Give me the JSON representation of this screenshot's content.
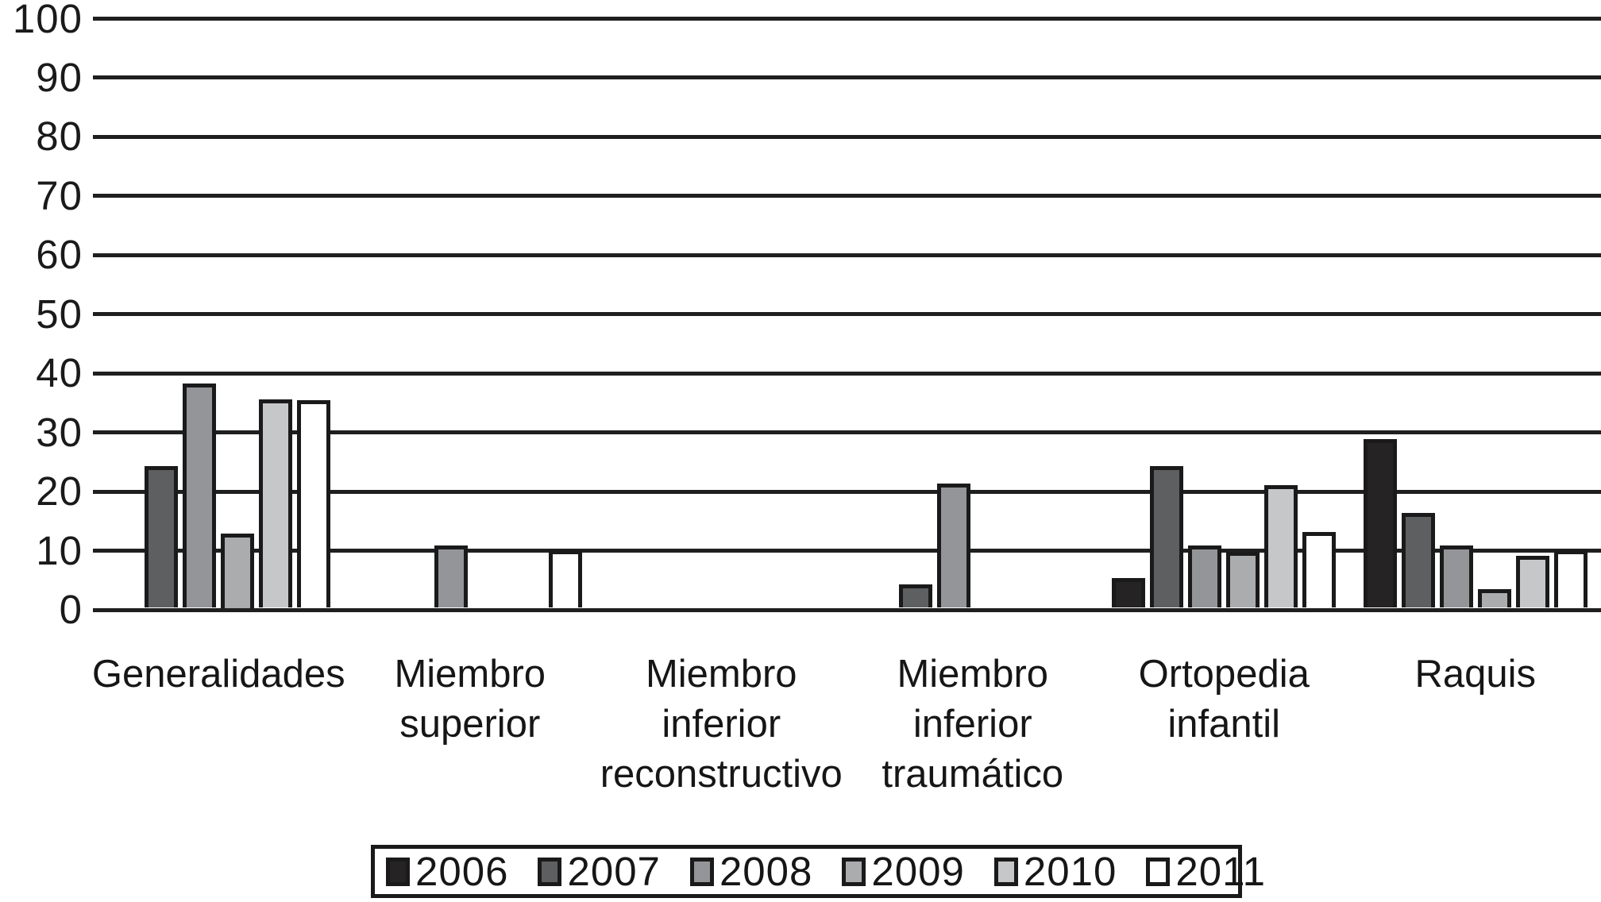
{
  "figure": {
    "kind": "grouped bar chart, grayscale, no title",
    "background_color": "#ffffff",
    "gridline_color": "#1f1f1f",
    "bar_border_color": "#1a1a1a",
    "text_color": "#161616"
  },
  "chart_data": {
    "type": "bar",
    "title": "",
    "xlabel": "",
    "ylabel": "",
    "categories": [
      "Generalidades",
      "Miembro superior",
      "Miembro inferior reconstructivo",
      "Miembro inferior traumático",
      "Ortopedia infantil",
      "Raquis"
    ],
    "category_label_lines": [
      [
        "Generalidades"
      ],
      [
        "Miembro",
        "superior"
      ],
      [
        "Miembro",
        "inferior",
        "reconstructivo"
      ],
      [
        "Miembro",
        "inferior",
        "traumático"
      ],
      [
        "Ortopedia",
        "infantil"
      ],
      [
        "Raquis"
      ]
    ],
    "series": [
      {
        "name": "2006",
        "color": "#262324",
        "values": [
          0,
          0,
          0,
          0,
          5,
          28.5
        ]
      },
      {
        "name": "2007",
        "color": "#5d5f61",
        "values": [
          24,
          0,
          0,
          4,
          24,
          16
        ]
      },
      {
        "name": "2008",
        "color": "#939598",
        "values": [
          38,
          10.5,
          0,
          21,
          10.5,
          10.5
        ]
      },
      {
        "name": "2009",
        "color": "#aaacae",
        "values": [
          12.5,
          0,
          0,
          0,
          9.5,
          3.2
        ]
      },
      {
        "name": "2010",
        "color": "#c6c7c9",
        "values": [
          35.3,
          0,
          0,
          0,
          20.7,
          8.8
        ]
      },
      {
        "name": "2011",
        "color": "#ffffff",
        "values": [
          35.1,
          9.7,
          0,
          0,
          12.8,
          9.7
        ]
      }
    ],
    "ylim": [
      0,
      100
    ],
    "ytick_step": 10,
    "ytick_labels": [
      "0",
      "10",
      "20",
      "30",
      "40",
      "50",
      "60",
      "70",
      "80",
      "90",
      "100"
    ],
    "grid": "horizontal gridlines at every 10 units",
    "legend_position": "bottom",
    "legend_entries": [
      "2006",
      "2007",
      "2008",
      "2009",
      "2010",
      "2011"
    ]
  }
}
